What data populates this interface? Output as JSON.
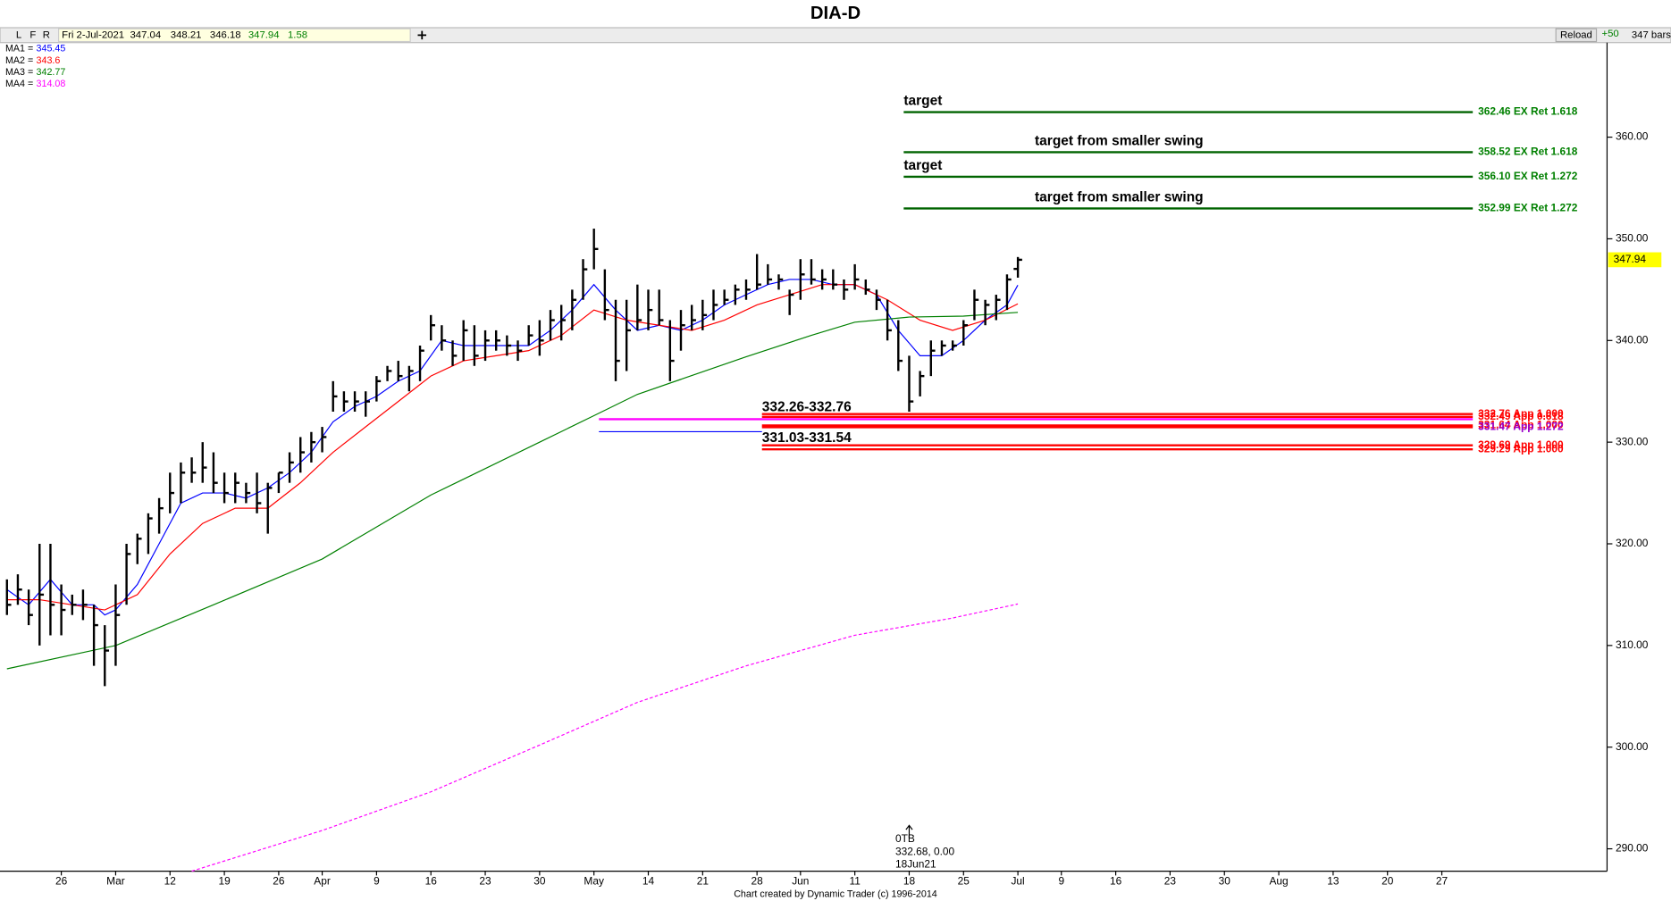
{
  "header": {
    "buttons": [
      "L",
      "F",
      "R"
    ],
    "date": "Fri 2-Jul-2021",
    "open": 347.04,
    "high": 348.21,
    "low": 346.18,
    "close": 347.94,
    "change": 1.58,
    "plus": "+50",
    "reload": "Reload",
    "bars": "347 bars"
  },
  "chart_data": {
    "type": "ohlc",
    "title": "DIA-D",
    "xlim": [
      -0.64,
      147.2
    ],
    "ylim": [
      287.8,
      369.3
    ],
    "yticks": [
      {
        "value": 290,
        "label": "290.00"
      },
      {
        "value": 300,
        "label": "300.00"
      },
      {
        "value": 310,
        "label": "310.00"
      },
      {
        "value": 320,
        "label": "320.00"
      },
      {
        "value": 330,
        "label": "330.00"
      },
      {
        "value": 340,
        "label": "340.00"
      },
      {
        "value": 350,
        "label": "350.00"
      },
      {
        "value": 360,
        "label": "360.00"
      }
    ],
    "xticks": [
      {
        "value": 5,
        "label": "26"
      },
      {
        "value": 10,
        "label": "Mar"
      },
      {
        "value": 15,
        "label": "12"
      },
      {
        "value": 20,
        "label": "19"
      },
      {
        "value": 25,
        "label": "26"
      },
      {
        "value": 29,
        "label": "Apr"
      },
      {
        "value": 34,
        "label": "9"
      },
      {
        "value": 39,
        "label": "16"
      },
      {
        "value": 44,
        "label": "23"
      },
      {
        "value": 49,
        "label": "30"
      },
      {
        "value": 54,
        "label": "May"
      },
      {
        "value": 59,
        "label": "14"
      },
      {
        "value": 64,
        "label": "21"
      },
      {
        "value": 69,
        "label": "28"
      },
      {
        "value": 73,
        "label": "Jun"
      },
      {
        "value": 78,
        "label": "11"
      },
      {
        "value": 83,
        "label": "18"
      },
      {
        "value": 88,
        "label": "25"
      },
      {
        "value": 93,
        "label": "Jul"
      },
      {
        "value": 97,
        "label": "9"
      },
      {
        "value": 102,
        "label": "16"
      },
      {
        "value": 107,
        "label": "23"
      },
      {
        "value": 112,
        "label": "30"
      },
      {
        "value": 117,
        "label": "Aug"
      },
      {
        "value": 122,
        "label": "13"
      },
      {
        "value": 127,
        "label": "20"
      },
      {
        "value": 132,
        "label": "27"
      }
    ],
    "color": "#000000",
    "high": [
      316.5,
      317,
      315.5,
      320,
      320,
      316,
      315,
      315.5,
      314,
      312,
      316,
      320,
      321,
      323,
      324.5,
      327,
      328,
      328.5,
      330,
      329,
      327,
      327,
      326,
      327,
      326,
      327,
      329,
      330.5,
      331,
      331.5,
      336,
      335,
      335,
      335,
      336.5,
      337.5,
      338,
      337.5,
      339.5,
      342.5,
      341.5,
      340,
      342,
      341.5,
      341,
      341,
      340.5,
      340,
      341.5,
      342,
      343,
      343.5,
      345,
      348,
      351,
      347,
      344,
      344,
      345.5,
      345,
      345,
      342,
      343,
      343.5,
      344,
      345,
      345,
      345.5,
      346,
      348.5,
      347.5,
      346.5,
      345,
      348,
      348,
      347,
      347,
      346,
      347.5,
      346,
      345,
      344,
      342,
      338.5,
      337,
      340,
      340,
      340,
      342,
      345,
      344,
      344.5,
      346.5,
      348.21
    ],
    "low": [
      313,
      314,
      312,
      310,
      311,
      311,
      313,
      312.5,
      308,
      306,
      308,
      314,
      318,
      319,
      321,
      323,
      324,
      326,
      326,
      325,
      324,
      324,
      324,
      323,
      321,
      325,
      326,
      327,
      328,
      329,
      333,
      333,
      333,
      332.5,
      334,
      336,
      336,
      335,
      336,
      340,
      339,
      337.5,
      338,
      337.5,
      338,
      339,
      338.5,
      338,
      339.5,
      338.5,
      340,
      340,
      341,
      344,
      347,
      342,
      336,
      337,
      341,
      341,
      341.5,
      336,
      339,
      341,
      341,
      342,
      343.5,
      343.5,
      344,
      345,
      345.5,
      345,
      342.5,
      344,
      345.5,
      345,
      345,
      344,
      345,
      344.5,
      343,
      340,
      337,
      333,
      334.5,
      336.5,
      338.5,
      339,
      339.5,
      342,
      341.5,
      342,
      343,
      346.18
    ],
    "close": [
      314,
      315.5,
      313,
      315,
      314,
      313.5,
      314,
      314,
      312,
      309.5,
      313,
      319,
      320.5,
      322.5,
      323.5,
      325,
      327,
      327,
      327.5,
      326,
      325,
      326,
      325,
      324,
      325.5,
      327,
      328,
      329,
      330,
      330.5,
      334.5,
      334,
      334,
      334,
      336,
      337,
      336.5,
      337,
      339,
      341.5,
      340,
      338.5,
      341,
      338.5,
      340,
      340,
      339.5,
      339,
      340.5,
      340,
      342,
      342,
      344,
      347,
      349,
      343,
      338,
      341,
      342,
      343,
      342,
      338,
      341.5,
      342,
      342.5,
      343.5,
      344,
      345,
      345,
      345.5,
      346,
      346,
      344.5,
      346.5,
      346,
      346,
      345.5,
      345,
      346,
      345,
      344,
      341,
      338,
      334,
      336.5,
      339,
      339.5,
      339.5,
      341.5,
      344,
      343.5,
      344,
      346,
      347.94
    ],
    "series": [
      {
        "name": "MA1 =",
        "color": "#0000ff",
        "value": 345.45,
        "x": [
          0,
          2,
          4,
          6,
          8,
          9,
          10,
          12,
          14,
          16,
          18,
          20,
          22,
          24,
          26,
          28,
          30,
          32,
          34,
          36,
          38,
          40,
          42,
          44,
          46,
          48,
          50,
          52,
          54,
          56,
          58,
          60,
          62,
          64,
          66,
          68,
          70,
          72,
          74,
          76,
          78,
          80,
          82,
          84,
          86,
          88,
          90,
          92,
          93
        ],
        "values": [
          315.5,
          314,
          316.5,
          314,
          314,
          313,
          313.5,
          316,
          320,
          324,
          325,
          325,
          324.5,
          325.5,
          327,
          329,
          332,
          333.5,
          334.5,
          336,
          337,
          340,
          339.5,
          339.5,
          339.5,
          339.5,
          341,
          343,
          345.5,
          343,
          341,
          341.5,
          341,
          342,
          343.5,
          344.5,
          345.5,
          346,
          346,
          345.5,
          345.5,
          344.5,
          341,
          338.5,
          338.5,
          340,
          342,
          343.5,
          345.45
        ]
      },
      {
        "name": "MA2 =",
        "color": "#ff0000",
        "value": 343.6,
        "x": [
          0,
          3,
          6,
          9,
          12,
          15,
          18,
          21,
          24,
          27,
          30,
          33,
          36,
          39,
          42,
          45,
          48,
          51,
          54,
          57,
          60,
          63,
          66,
          69,
          72,
          75,
          78,
          81,
          84,
          87,
          90,
          93
        ],
        "values": [
          314.5,
          314.5,
          314,
          313.5,
          315,
          319,
          322,
          323.5,
          323.5,
          326,
          329,
          331.5,
          334,
          336.5,
          338,
          338.5,
          339,
          340.5,
          343,
          342,
          341.5,
          341,
          342,
          343.5,
          344.5,
          345.5,
          345.5,
          344,
          342,
          341,
          342,
          343.6
        ]
      },
      {
        "name": "MA3 =",
        "color": "#008000",
        "value": 342.77,
        "x": [
          0,
          10,
          19,
          29,
          39,
          49,
          54,
          58,
          68,
          74,
          78,
          83,
          88,
          93
        ],
        "values": [
          307.7,
          310,
          314,
          318.5,
          324.8,
          330,
          332.6,
          334.7,
          338.4,
          340.5,
          341.8,
          342.3,
          342.4,
          342.77
        ]
      },
      {
        "name": "MA4 =",
        "color": "#ff00ff",
        "dashed": true,
        "value": 314.08,
        "x": [
          17,
          29,
          39,
          49,
          58,
          68,
          78,
          87,
          93
        ],
        "values": [
          287.8,
          291.8,
          295.6,
          300.2,
          304.4,
          308,
          311,
          312.7,
          314.08
        ]
      }
    ],
    "targets": [
      {
        "value": 362.46,
        "label": "362.46 EX Ret 1.618",
        "note": "target"
      },
      {
        "value": 358.52,
        "label": "358.52 EX Ret 1.618",
        "note": "target from smaller swing"
      },
      {
        "value": 356.1,
        "label": "356.10 EX Ret 1.272",
        "note": "target"
      },
      {
        "value": 352.99,
        "label": "352.99 EX Ret 1.272",
        "note": "target from smaller swing"
      }
    ],
    "supports": [
      {
        "value": 332.76,
        "label": "332.76 App 1.000"
      },
      {
        "value": 332.49,
        "label": "332.49 App 0.618"
      },
      {
        "value": 331.64,
        "label": "331.64 App 1.000"
      },
      {
        "value": 331.47,
        "label": "331.47 App 1.272"
      },
      {
        "value": 329.69,
        "label": "329.69 App 1.000"
      },
      {
        "value": 329.29,
        "label": "329.29 App 1.000"
      }
    ],
    "zones": [
      {
        "label": "332.26-332.76",
        "low": 332.26,
        "high": 332.76,
        "color": "#ff00ff"
      },
      {
        "label": "331.03-331.54",
        "low": 331.03,
        "high": 331.54,
        "color": "#0000ff"
      }
    ],
    "annotation": [
      "0TB",
      "332.68, 0.00",
      "18Jun21"
    ],
    "footer": "Chart created by Dynamic Trader  (c) 1996-2014"
  }
}
